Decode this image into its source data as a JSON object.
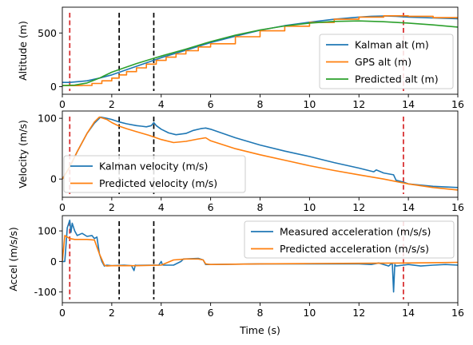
{
  "chart_data": [
    {
      "type": "line",
      "ylabel": "Altitude (m)",
      "xlim": [
        0,
        16
      ],
      "ylim": [
        -70,
        740
      ],
      "xticks": [
        0,
        2,
        4,
        6,
        8,
        10,
        12,
        14,
        16
      ],
      "yticks": [
        0,
        500
      ],
      "legend_position": "lower-right",
      "grid": false,
      "vlines": [
        {
          "x": 0.3,
          "color": "#d62728"
        },
        {
          "x": 2.3,
          "color": "#000000"
        },
        {
          "x": 3.7,
          "color": "#000000"
        },
        {
          "x": 13.8,
          "color": "#d62728"
        }
      ],
      "series": [
        {
          "name": "Kalman alt (m)",
          "color": "#1f77b4",
          "x": [
            0,
            0.3,
            1,
            1.5,
            2,
            2.5,
            3,
            4,
            5,
            6,
            7,
            8,
            9,
            10,
            11,
            12,
            12.5,
            13,
            13.5,
            14,
            15,
            16
          ],
          "y": [
            40,
            40,
            55,
            80,
            110,
            150,
            190,
            270,
            340,
            410,
            470,
            525,
            568,
            600,
            628,
            648,
            655,
            658,
            655,
            648,
            640,
            632
          ]
        },
        {
          "name": "GPS alt (m)",
          "color": "#ff7f0e",
          "step": true,
          "x": [
            0,
            0.4,
            0.8,
            1.2,
            1.6,
            2.0,
            2.3,
            2.6,
            3.0,
            3.4,
            3.8,
            4.2,
            4.6,
            5.0,
            5.5,
            6,
            7,
            8,
            9,
            10,
            11,
            12,
            13,
            14,
            15,
            16
          ],
          "y": [
            10,
            10,
            12,
            30,
            55,
            80,
            110,
            140,
            175,
            210,
            245,
            275,
            305,
            335,
            370,
            400,
            465,
            520,
            563,
            598,
            628,
            648,
            660,
            655,
            643,
            630
          ]
        },
        {
          "name": "Predicted alt (m)",
          "color": "#2ca02c",
          "x": [
            0,
            0.5,
            1,
            1.5,
            2,
            2.5,
            3,
            3.5,
            4,
            5,
            6,
            7,
            8,
            9,
            10,
            11,
            12,
            13,
            14,
            15,
            16
          ],
          "y": [
            10,
            15,
            35,
            80,
            135,
            175,
            215,
            250,
            285,
            350,
            420,
            480,
            528,
            565,
            592,
            608,
            612,
            605,
            592,
            575,
            555
          ]
        }
      ]
    },
    {
      "type": "line",
      "ylabel": "Velocity (m/s)",
      "xlim": [
        0,
        16
      ],
      "ylim": [
        -30,
        112
      ],
      "xticks": [
        0,
        2,
        4,
        6,
        8,
        10,
        12,
        14,
        16
      ],
      "yticks": [
        0,
        100
      ],
      "legend_position": "lower-left",
      "grid": false,
      "vlines": [
        {
          "x": 0.3,
          "color": "#d62728"
        },
        {
          "x": 2.3,
          "color": "#000000"
        },
        {
          "x": 3.7,
          "color": "#000000"
        },
        {
          "x": 13.8,
          "color": "#d62728"
        }
      ],
      "series": [
        {
          "name": "Kalman velocity (m/s)",
          "color": "#1f77b4",
          "x": [
            0,
            0.3,
            0.6,
            1,
            1.3,
            1.55,
            1.8,
            2,
            2.3,
            2.6,
            3,
            3.2,
            3.4,
            3.6,
            3.7,
            3.8,
            4,
            4.3,
            4.6,
            5,
            5.3,
            5.6,
            5.8,
            6,
            6.5,
            7,
            8,
            9,
            10,
            11,
            12,
            12.6,
            12.7,
            13,
            13.4,
            13.5,
            13.8,
            14,
            15,
            16
          ],
          "y": [
            0,
            20,
            45,
            75,
            92,
            102,
            100,
            98,
            94,
            91,
            88,
            87,
            86,
            88,
            93,
            88,
            82,
            76,
            73,
            75,
            80,
            83,
            84,
            82,
            75,
            68,
            56,
            46,
            37,
            27,
            18,
            12,
            15,
            10,
            7,
            -2,
            -5,
            -8,
            -12,
            -14
          ]
        },
        {
          "name": "Predicted velocity (m/s)",
          "color": "#ff7f0e",
          "x": [
            0,
            0.3,
            0.6,
            1,
            1.3,
            1.5,
            1.8,
            2,
            2.3,
            2.6,
            3,
            3.5,
            4,
            4.5,
            5,
            5.5,
            5.8,
            6,
            7,
            8,
            9,
            10,
            11,
            12,
            13,
            14,
            15,
            16
          ],
          "y": [
            0,
            20,
            45,
            75,
            94,
            102,
            98,
            93,
            87,
            83,
            78,
            72,
            65,
            60,
            62,
            66,
            68,
            63,
            50,
            40,
            31,
            22,
            14,
            7,
            0,
            -8,
            -14,
            -18
          ]
        }
      ]
    },
    {
      "type": "line",
      "ylabel": "Accel (m/s/s)",
      "xlabel": "Time (s)",
      "xlim": [
        0,
        16
      ],
      "ylim": [
        -135,
        150
      ],
      "xticks": [
        0,
        2,
        4,
        6,
        8,
        10,
        12,
        14,
        16
      ],
      "yticks": [
        -100,
        0,
        100
      ],
      "legend_position": "top-right",
      "grid": false,
      "vlines": [
        {
          "x": 0.3,
          "color": "#d62728"
        },
        {
          "x": 2.3,
          "color": "#000000"
        },
        {
          "x": 3.7,
          "color": "#000000"
        },
        {
          "x": 13.8,
          "color": "#d62728"
        }
      ],
      "series": [
        {
          "name": "Measured acceleration (m/s/s)",
          "color": "#1f77b4",
          "x": [
            0,
            0.1,
            0.2,
            0.3,
            0.35,
            0.4,
            0.5,
            0.6,
            0.8,
            1,
            1.2,
            1.3,
            1.4,
            1.5,
            1.6,
            1.7,
            1.8,
            2,
            2.5,
            2.8,
            2.9,
            2.95,
            3,
            3.5,
            3.9,
            4,
            4.05,
            4.1,
            4.5,
            4.8,
            4.9,
            5.5,
            5.7,
            5.8,
            6,
            8,
            10,
            12,
            12.5,
            12.8,
            13,
            13.2,
            13.35,
            13.4,
            13.45,
            13.5,
            13.8,
            14,
            14.5,
            15,
            15.5,
            16
          ],
          "y": [
            0,
            0,
            110,
            135,
            95,
            125,
            100,
            85,
            92,
            82,
            85,
            75,
            80,
            25,
            0,
            -15,
            -12,
            -14,
            -12,
            -14,
            -30,
            -12,
            -13,
            -12,
            -12,
            0,
            -11,
            -12,
            -12,
            0,
            8,
            10,
            5,
            -10,
            -10,
            -8,
            -8,
            -8,
            -10,
            -5,
            -10,
            -15,
            -5,
            -100,
            -10,
            -15,
            -12,
            -10,
            -15,
            -12,
            -10,
            -12
          ]
        },
        {
          "name": "Predicted acceleration (m/s/s)",
          "color": "#ff7f0e",
          "x": [
            0,
            0.1,
            0.3,
            0.5,
            1,
            1.3,
            1.5,
            1.7,
            1.8,
            2,
            3,
            4,
            4.5,
            5,
            5.5,
            5.7,
            5.8,
            6,
            8,
            10,
            12,
            14,
            15,
            16
          ],
          "y": [
            0,
            85,
            75,
            72,
            72,
            70,
            25,
            -12,
            -15,
            -14,
            -14,
            -12,
            5,
            8,
            8,
            5,
            -8,
            -10,
            -8,
            -7,
            -6,
            -5,
            -4,
            -3
          ]
        }
      ]
    }
  ]
}
